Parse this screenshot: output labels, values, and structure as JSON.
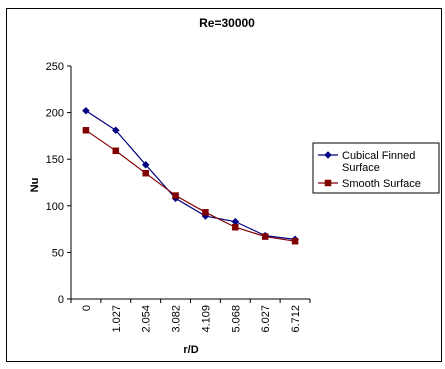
{
  "chart_data": {
    "type": "line",
    "title": "Re=30000",
    "xlabel": "r/D",
    "ylabel": "Nu",
    "categories": [
      "0",
      "1.027",
      "2.054",
      "3.082",
      "4.109",
      "5.068",
      "6.027",
      "6.712"
    ],
    "ylim": [
      0,
      250
    ],
    "yticks": [
      0,
      50,
      100,
      150,
      200,
      250
    ],
    "grid": false,
    "legend_position": "right",
    "series": [
      {
        "name": "Cubical Finned Surface",
        "legend_lines": [
          "Cubical Finned",
          "Surface"
        ],
        "color": "#000080",
        "marker": "diamond",
        "values": [
          202,
          181,
          144,
          108,
          89,
          83,
          68,
          64
        ]
      },
      {
        "name": "Smooth Surface",
        "legend_lines": [
          "Smooth Surface"
        ],
        "color": "#800000",
        "marker": "square",
        "values": [
          181,
          159,
          135,
          111,
          93,
          77,
          67,
          62
        ]
      }
    ]
  }
}
